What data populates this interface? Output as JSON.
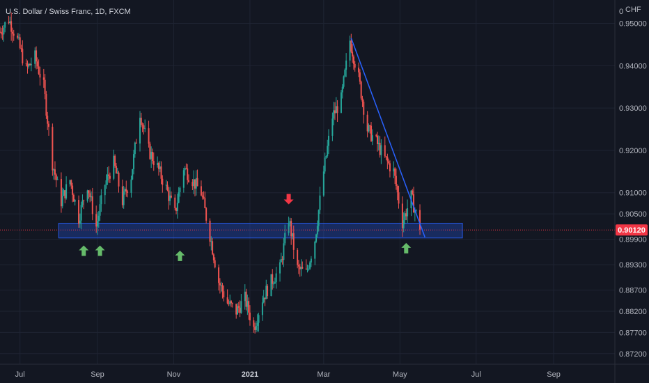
{
  "header": {
    "title": "U.S. Dollar / Swiss Franc, 1D, FXCM"
  },
  "price_axis": {
    "currency": "CHF",
    "top_value": "0",
    "labels": [
      "0.95000",
      "0.94000",
      "0.93000",
      "0.92000",
      "0.91000",
      "0.90500",
      "0.89900",
      "0.89300",
      "0.88700",
      "0.88200",
      "0.87700",
      "0.87200"
    ]
  },
  "last_price": {
    "label": "0.90120",
    "value": 0.9012,
    "color": "#f23645"
  },
  "time_axis": {
    "labels": [
      "Jul",
      "Sep",
      "Nov",
      "2021",
      "Mar",
      "May",
      "Jul",
      "Sep"
    ]
  },
  "colors": {
    "background": "#131722",
    "up": "#26a69a",
    "down": "#ef5350",
    "zone": "#2962ff",
    "trendline": "#2962ff",
    "arrow_up": "#66bb6a",
    "arrow_down": "#f23645"
  },
  "annotations": {
    "support_zone": {
      "low": 0.8993,
      "high": 0.9028,
      "start": "2020-08-01",
      "end": "2021-06-20"
    },
    "trendline": {
      "start": {
        "date": "2021-03-23",
        "price": 0.9465
      },
      "end": {
        "date": "2021-05-21",
        "price": 0.8995
      }
    },
    "arrows": [
      {
        "type": "up",
        "date": "2020-08-21",
        "price": 0.8995
      },
      {
        "type": "up",
        "date": "2020-09-03",
        "price": 0.8995
      },
      {
        "type": "up",
        "date": "2020-11-06",
        "price": 0.8983
      },
      {
        "type": "down",
        "date": "2021-02-01",
        "price": 0.9056
      },
      {
        "type": "up",
        "date": "2021-05-06",
        "price": 0.9001
      }
    ]
  },
  "chart_data": {
    "type": "candlestick",
    "symbol": "USDCHF",
    "timeframe": "1D",
    "x_range": [
      "2020-06-15",
      "2021-10-20"
    ],
    "y_range": [
      0.8695,
      0.9555
    ],
    "y_ticks": [
      0.95,
      0.94,
      0.93,
      0.92,
      0.91,
      0.905,
      0.899,
      0.893,
      0.887,
      0.882,
      0.877,
      0.872
    ],
    "x_ticks": [
      {
        "label": "Jul",
        "date": "2020-07-01"
      },
      {
        "label": "Sep",
        "date": "2020-09-01"
      },
      {
        "label": "Nov",
        "date": "2020-11-01"
      },
      {
        "label": "2021",
        "date": "2021-01-01"
      },
      {
        "label": "Mar",
        "date": "2021-03-01"
      },
      {
        "label": "May",
        "date": "2021-05-01"
      },
      {
        "label": "Jul",
        "date": "2021-07-01"
      },
      {
        "label": "Sep",
        "date": "2021-09-01"
      }
    ],
    "grid": true,
    "close_path": [
      [
        "2020-06-15",
        0.948
      ],
      [
        "2020-06-22",
        0.951
      ],
      [
        "2020-06-29",
        0.946
      ],
      [
        "2020-07-06",
        0.939
      ],
      [
        "2020-07-13",
        0.942
      ],
      [
        "2020-07-20",
        0.935
      ],
      [
        "2020-07-27",
        0.917
      ],
      [
        "2020-08-03",
        0.908
      ],
      [
        "2020-08-10",
        0.913
      ],
      [
        "2020-08-17",
        0.904
      ],
      [
        "2020-08-24",
        0.912
      ],
      [
        "2020-08-31",
        0.902
      ],
      [
        "2020-09-07",
        0.912
      ],
      [
        "2020-09-14",
        0.917
      ],
      [
        "2020-09-21",
        0.908
      ],
      [
        "2020-09-28",
        0.914
      ],
      [
        "2020-10-05",
        0.929
      ],
      [
        "2020-10-12",
        0.92
      ],
      [
        "2020-10-19",
        0.916
      ],
      [
        "2020-10-26",
        0.911
      ],
      [
        "2020-11-02",
        0.905
      ],
      [
        "2020-11-09",
        0.916
      ],
      [
        "2020-11-16",
        0.913
      ],
      [
        "2020-11-23",
        0.91
      ],
      [
        "2020-11-30",
        0.9
      ],
      [
        "2020-12-07",
        0.889
      ],
      [
        "2020-12-14",
        0.884
      ],
      [
        "2020-12-21",
        0.882
      ],
      [
        "2020-12-28",
        0.885
      ],
      [
        "2021-01-04",
        0.878
      ],
      [
        "2021-01-11",
        0.885
      ],
      [
        "2021-01-18",
        0.889
      ],
      [
        "2021-01-25",
        0.892
      ],
      [
        "2021-02-01",
        0.904
      ],
      [
        "2021-02-08",
        0.892
      ],
      [
        "2021-02-15",
        0.891
      ],
      [
        "2021-02-22",
        0.899
      ],
      [
        "2021-03-01",
        0.915
      ],
      [
        "2021-03-08",
        0.928
      ],
      [
        "2021-03-15",
        0.932
      ],
      [
        "2021-03-22",
        0.946
      ],
      [
        "2021-03-29",
        0.937
      ],
      [
        "2021-04-05",
        0.925
      ],
      [
        "2021-04-12",
        0.922
      ],
      [
        "2021-04-19",
        0.918
      ],
      [
        "2021-04-26",
        0.915
      ],
      [
        "2021-05-03",
        0.903
      ],
      [
        "2021-05-10",
        0.909
      ],
      [
        "2021-05-17",
        0.902
      ]
    ]
  }
}
